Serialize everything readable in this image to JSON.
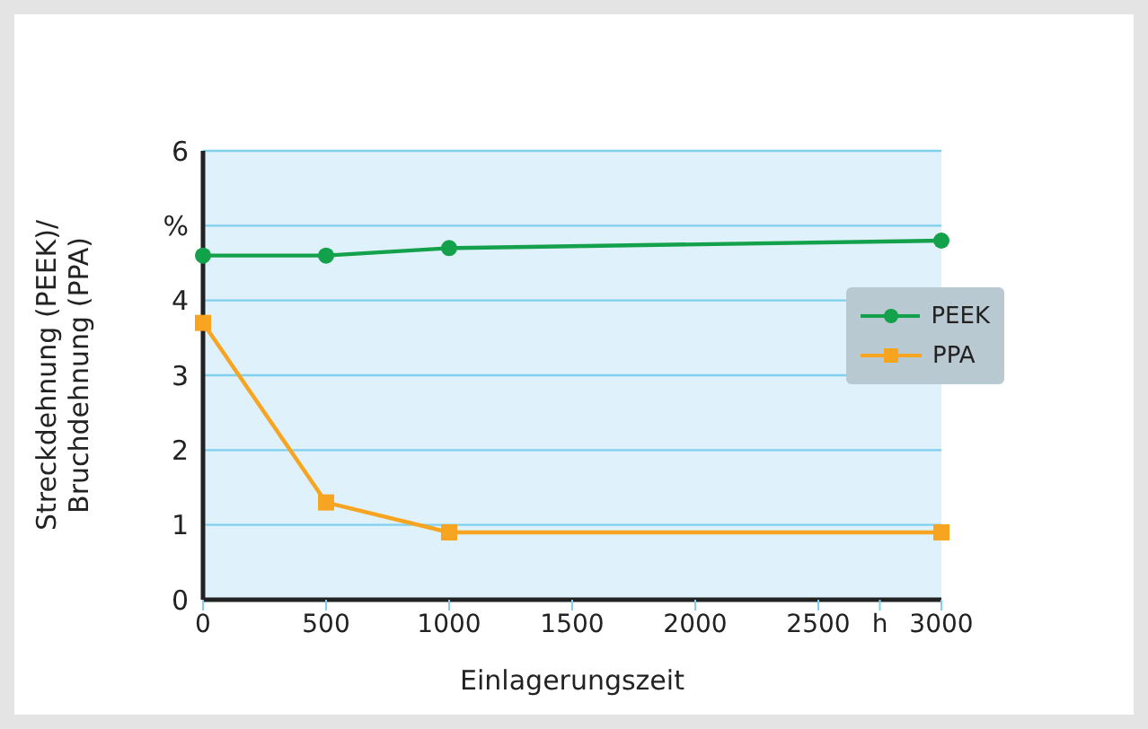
{
  "chart_data": {
    "type": "line",
    "xlabel": "Einlagerungszeit",
    "ylabel": "Streckdehnung (PEEK)/\nBruchdehnung (PPA)",
    "x": [
      0,
      500,
      1000,
      3000
    ],
    "series": [
      {
        "name": "PEEK",
        "color": "#13a24b",
        "marker": "circle",
        "values": [
          4.6,
          4.6,
          4.7,
          4.8
        ]
      },
      {
        "name": "PPA",
        "color": "#f7a520",
        "marker": "square",
        "values": [
          3.7,
          1.3,
          0.9,
          0.9
        ]
      }
    ],
    "xlim": [
      0,
      3000
    ],
    "xticks": [
      0,
      500,
      1000,
      1500,
      2000,
      2500,
      {
        "value": 2750,
        "label": "h"
      },
      3000
    ],
    "ylim": [
      0,
      6
    ],
    "yticks": [
      0,
      1,
      2,
      3,
      4,
      {
        "value": 5,
        "label": "%"
      },
      6
    ],
    "grid": "y",
    "legend": "center right",
    "line_style": "solid"
  }
}
